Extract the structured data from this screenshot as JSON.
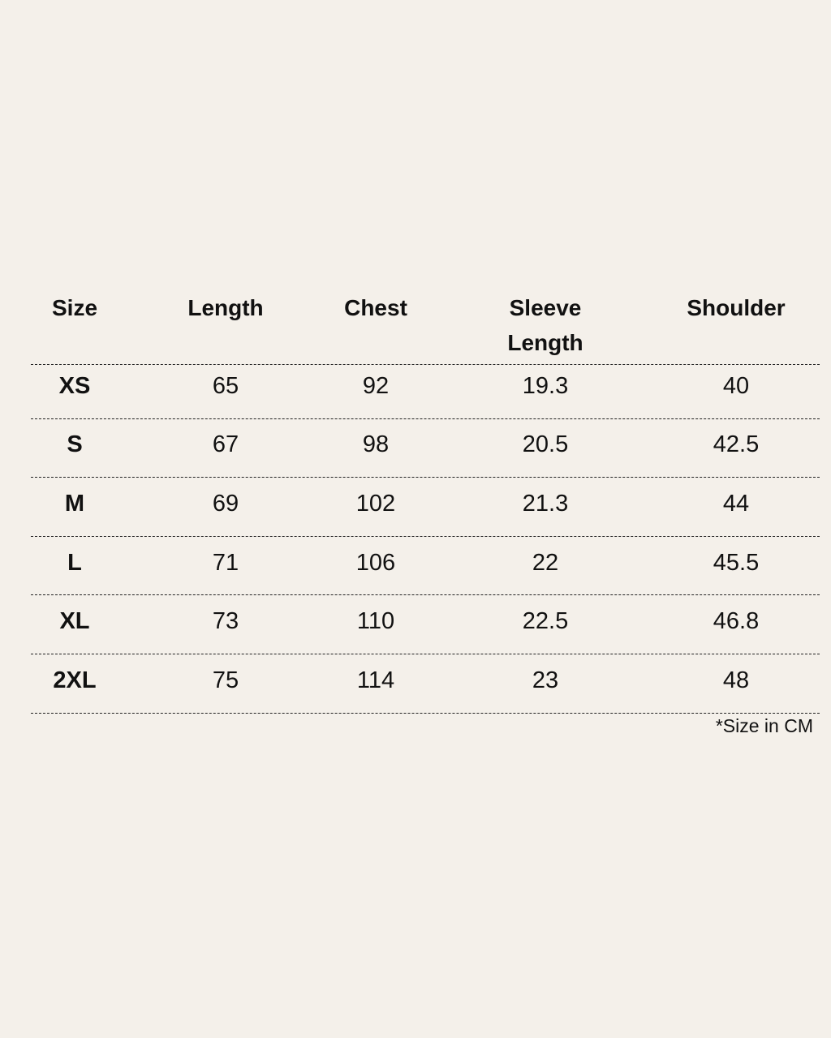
{
  "table": {
    "headers": [
      "Size",
      "Length",
      "Chest",
      "Sleeve Length",
      "Shoulder"
    ],
    "rows": [
      [
        "XS",
        "65",
        "92",
        "19.3",
        "40"
      ],
      [
        "S",
        "67",
        "98",
        "20.5",
        "42.5"
      ],
      [
        "M",
        "69",
        "102",
        "21.3",
        "44"
      ],
      [
        "L",
        "71",
        "106",
        "22",
        "45.5"
      ],
      [
        "XL",
        "73",
        "110",
        "22.5",
        "46.8"
      ],
      [
        "2XL",
        "75",
        "114",
        "23",
        "48"
      ]
    ],
    "note": "*Size in CM"
  },
  "colors": {
    "background": "#f4f0ea",
    "text": "#111111"
  }
}
